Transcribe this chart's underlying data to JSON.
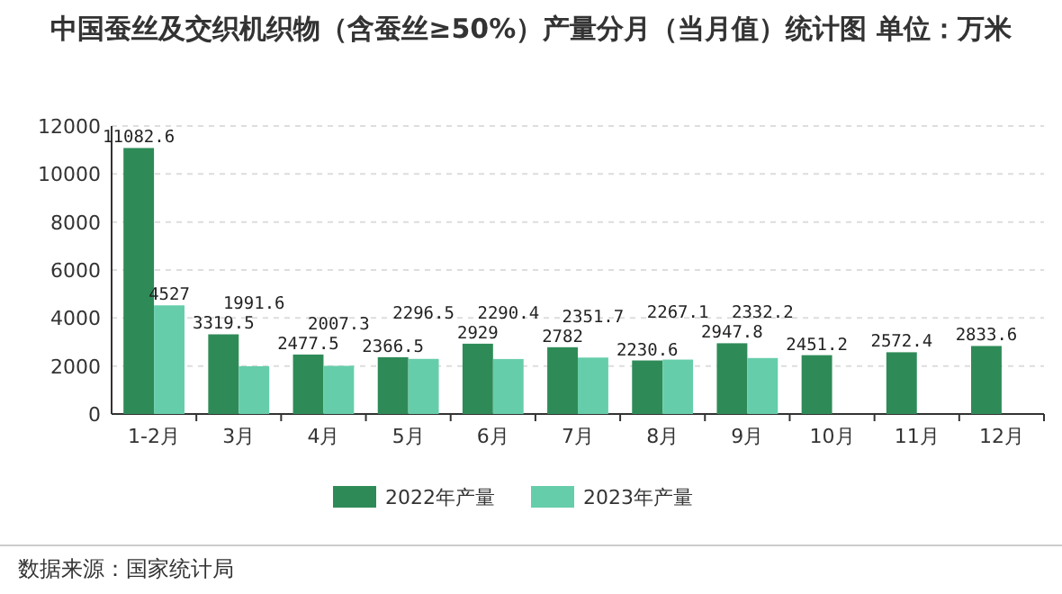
{
  "chart_data": {
    "type": "bar",
    "title": "中国蚕丝及交织机织物（含蚕丝≥50%）产量分月（当月值）统计图 单位：万米",
    "categories": [
      "1-2月",
      "3月",
      "4月",
      "5月",
      "6月",
      "7月",
      "8月",
      "9月",
      "10月",
      "11月",
      "12月"
    ],
    "series": [
      {
        "name": "2022年产量",
        "color": "#2e8b57",
        "values": [
          11082.6,
          3319.5,
          2477.5,
          2366.5,
          2929,
          2782,
          2230.6,
          2947.8,
          2451.2,
          2572.4,
          2833.6
        ]
      },
      {
        "name": "2023年产量",
        "color": "#66cdaa",
        "values": [
          4527,
          1991.6,
          2007.3,
          2296.5,
          2290.4,
          2351.7,
          2267.1,
          2332.2,
          null,
          null,
          null
        ]
      }
    ],
    "ylim": [
      0,
      12000
    ],
    "yticks": [
      0,
      2000,
      4000,
      6000,
      8000,
      10000,
      12000
    ],
    "grid": "y",
    "legend": "bottom",
    "data_labels": true,
    "annotations": [
      "数据来源：国家统计局"
    ]
  }
}
